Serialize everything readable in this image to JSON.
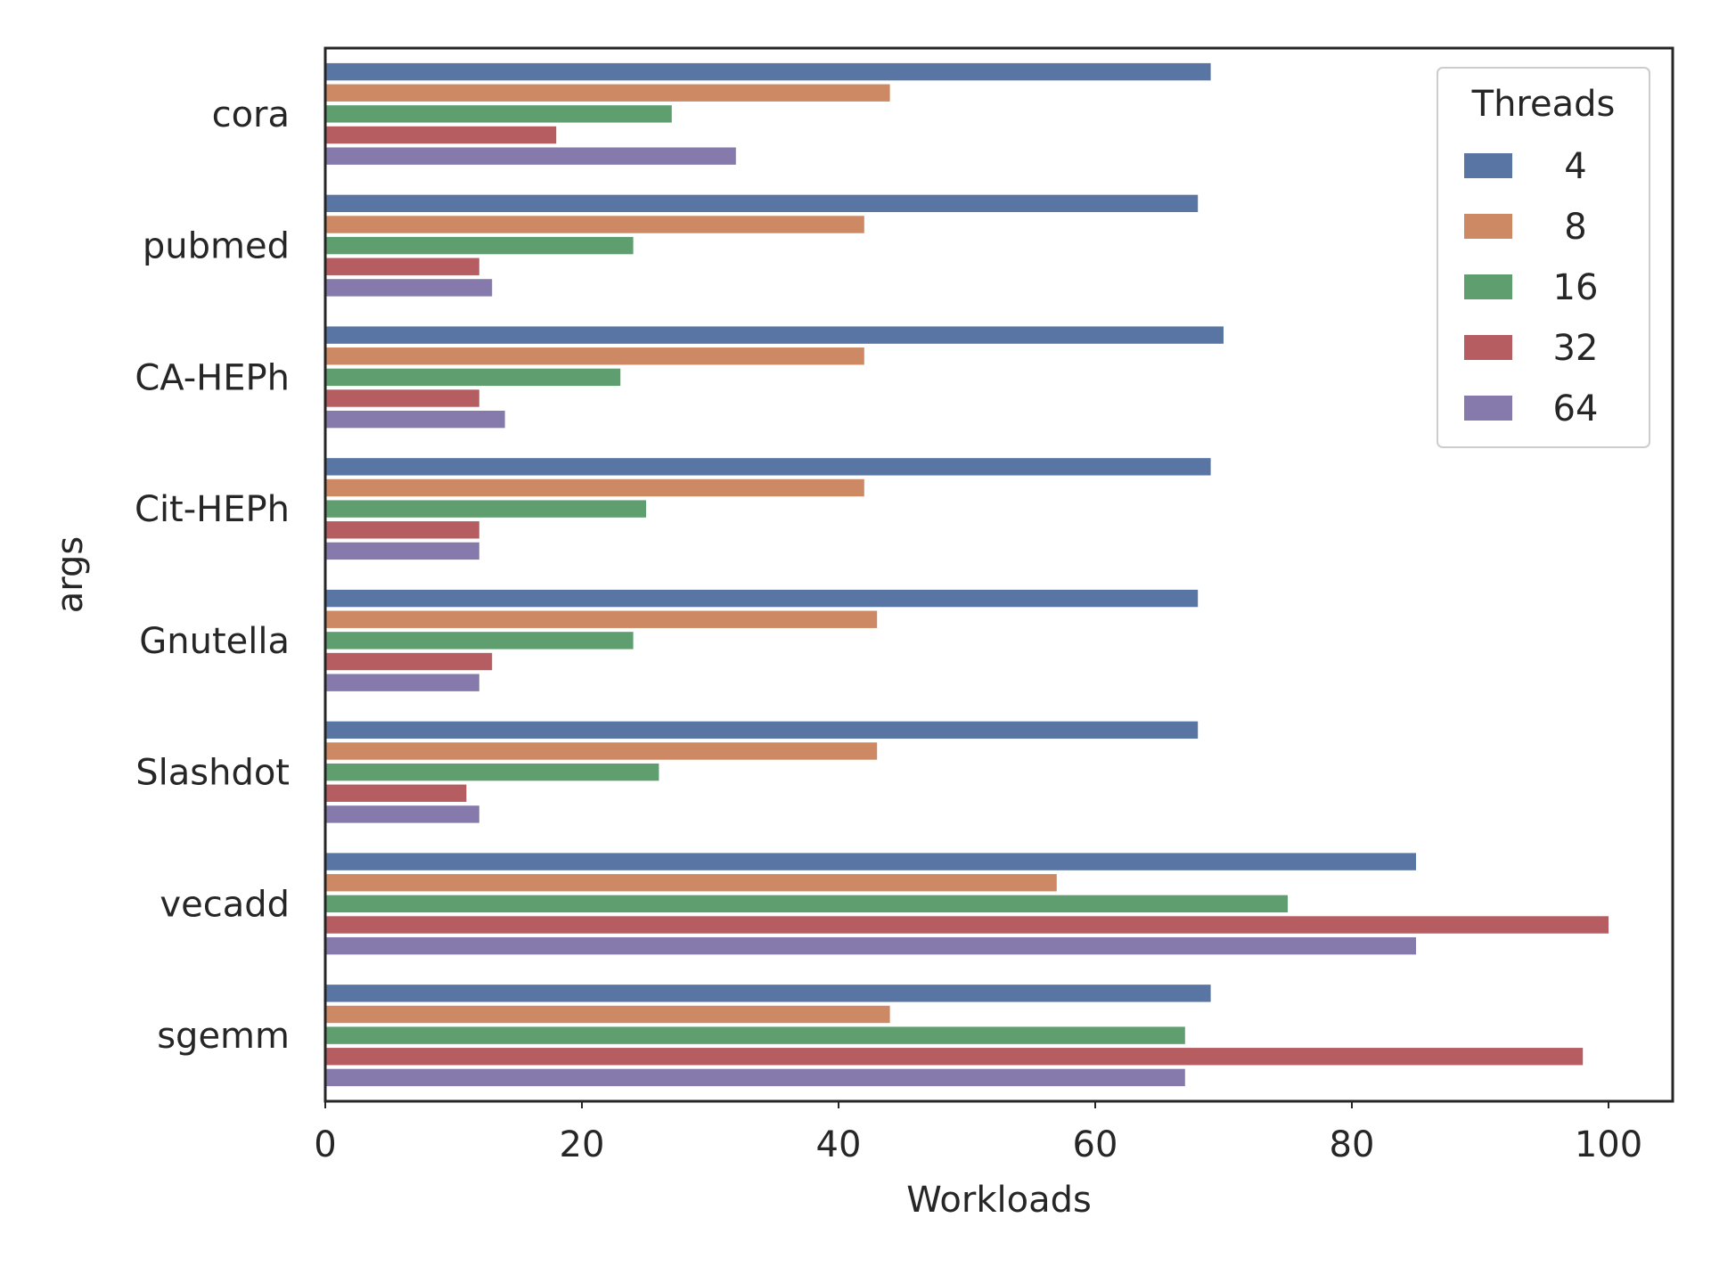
{
  "chart_data": {
    "type": "bar",
    "orientation": "horizontal",
    "title": "",
    "xlabel": "Workloads",
    "ylabel": "args",
    "xlim": [
      0,
      105
    ],
    "xticks": [
      0,
      20,
      40,
      60,
      80,
      100
    ],
    "grid": false,
    "legend": {
      "title": "Threads",
      "placement": "top-right"
    },
    "categories": [
      "cora",
      "pubmed",
      "CA-HEPh",
      "Cit-HEPh",
      "Gnutella",
      "Slashdot",
      "vecadd",
      "sgemm"
    ],
    "series": [
      {
        "name": "4",
        "color": "#5875a4",
        "values": [
          69,
          68,
          70,
          69,
          68,
          68,
          85,
          69
        ]
      },
      {
        "name": "8",
        "color": "#cc8963",
        "values": [
          44,
          42,
          42,
          42,
          43,
          43,
          57,
          44
        ]
      },
      {
        "name": "16",
        "color": "#5f9e6e",
        "values": [
          27,
          24,
          23,
          25,
          24,
          26,
          75,
          67
        ]
      },
      {
        "name": "32",
        "color": "#b55d60",
        "values": [
          18,
          12,
          12,
          12,
          13,
          11,
          100,
          98
        ]
      },
      {
        "name": "64",
        "color": "#857aab",
        "values": [
          32,
          13,
          14,
          12,
          12,
          12,
          85,
          67
        ]
      }
    ]
  }
}
